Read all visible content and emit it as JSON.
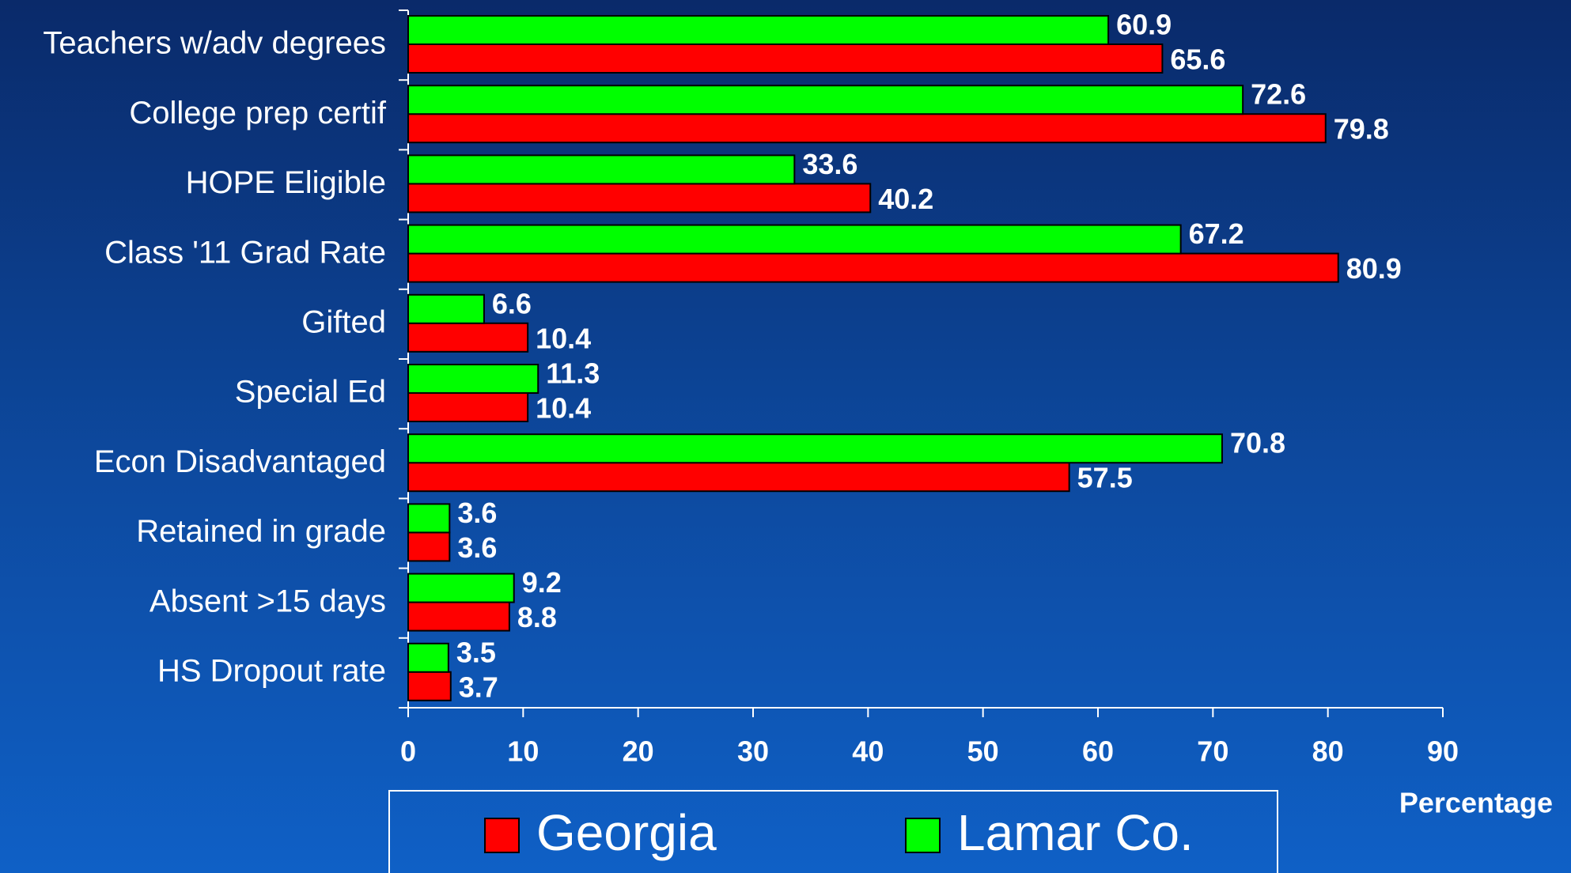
{
  "chart_data": {
    "type": "hbar",
    "categories": [
      "Teachers w/adv degrees",
      "College prep certif",
      "HOPE Eligible",
      "Class '11 Grad Rate",
      "Gifted",
      "Special Ed",
      "Econ Disadvantaged",
      "Retained in grade",
      "Absent >15 days",
      "HS Dropout rate"
    ],
    "series": [
      {
        "name": "Georgia",
        "color": "#ff0000",
        "values": [
          65.6,
          79.8,
          40.2,
          80.9,
          10.4,
          10.4,
          57.5,
          3.6,
          8.8,
          3.7
        ]
      },
      {
        "name": "Lamar Co.",
        "color": "#00ff00",
        "values": [
          60.9,
          72.6,
          33.6,
          67.2,
          6.6,
          11.3,
          70.8,
          3.6,
          9.2,
          3.5
        ]
      }
    ],
    "x_label": "Percentage",
    "xlim": [
      0,
      90
    ],
    "xticks": [
      0,
      10,
      20,
      30,
      40,
      50,
      60,
      70,
      80,
      90
    ]
  }
}
